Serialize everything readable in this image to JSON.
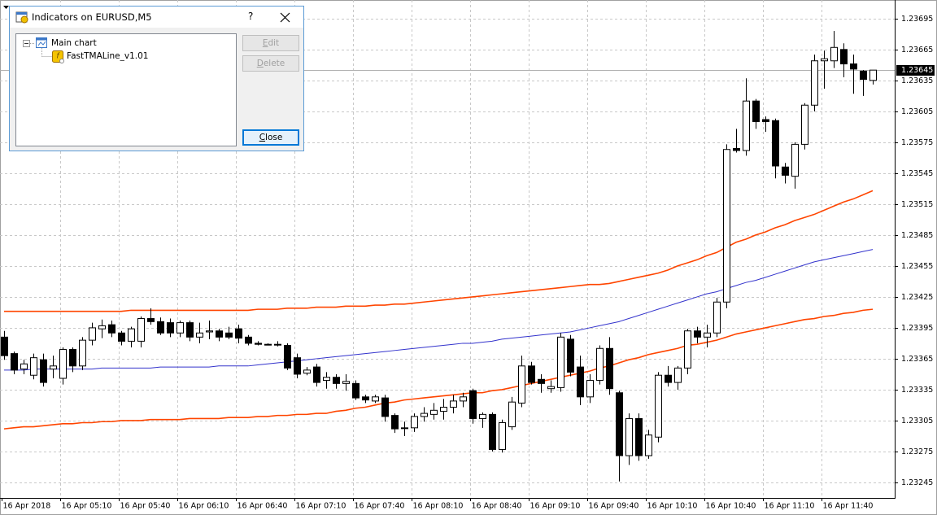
{
  "dialog": {
    "title": "Indicators on EURUSD,M5",
    "help": "?",
    "tree": {
      "root": "Main chart",
      "items": [
        "FastTMALine_v1.01"
      ]
    },
    "buttons": {
      "edit": "Edit",
      "delete": "Delete",
      "close": "Close"
    }
  },
  "chart_data": {
    "type": "candlestick",
    "categories": [
      "16 Apr 2018",
      null,
      null,
      null,
      null,
      null,
      "16 Apr 05:10",
      null,
      null,
      null,
      null,
      null,
      "16 Apr 05:40",
      null,
      null,
      null,
      null,
      null,
      "16 Apr 06:10",
      null,
      null,
      null,
      null,
      null,
      "16 Apr 06:40",
      null,
      null,
      null,
      null,
      null,
      "16 Apr 07:10",
      null,
      null,
      null,
      null,
      null,
      "16 Apr 07:40",
      null,
      null,
      null,
      null,
      null,
      "16 Apr 08:10",
      null,
      null,
      null,
      null,
      null,
      "16 Apr 08:40",
      null,
      null,
      null,
      null,
      null,
      "16 Apr 09:10",
      null,
      null,
      null,
      null,
      null,
      "16 Apr 09:40",
      null,
      null,
      null,
      null,
      null,
      "16 Apr 10:10",
      null,
      null,
      null,
      null,
      null,
      "16 Apr 10:40",
      null,
      null,
      null,
      null,
      null,
      "16 Apr 11:10",
      null,
      null,
      null,
      null,
      null,
      "16 Apr 11:40",
      null,
      null,
      null,
      null,
      null
    ],
    "open": [
      1.23386,
      1.2337,
      1.23355,
      1.23349,
      1.23364,
      1.23355,
      1.23346,
      1.23374,
      1.23358,
      1.23383,
      1.23394,
      1.23398,
      1.2339,
      1.23382,
      1.23382,
      1.23404,
      1.23401,
      1.234,
      1.2339,
      1.234,
      1.23386,
      1.23391,
      1.23392,
      1.2339,
      1.23394,
      1.23386,
      1.2338,
      1.23379,
      1.23379,
      1.23378,
      1.23366,
      1.23351,
      1.23357,
      1.23344,
      1.23347,
      1.23341,
      1.23341,
      1.23328,
      1.23324,
      1.23327,
      1.2331,
      1.23298,
      1.23298,
      1.23309,
      1.23311,
      1.23314,
      1.23318,
      1.23324,
      1.23334,
      1.23307,
      1.23311,
      1.23277,
      1.23299,
      1.23322,
      1.23358,
      1.23345,
      1.23336,
      1.23337,
      1.23384,
      1.23357,
      1.23328,
      1.23344,
      1.23375,
      1.23332,
      1.23271,
      1.23307,
      1.23271,
      1.23289,
      1.23349,
      1.23342,
      1.23356,
      1.23392,
      1.23386,
      1.2339,
      1.2342,
      1.23569,
      1.23567,
      1.23615,
      1.23597,
      1.23596,
      1.23551,
      1.23542,
      1.23573,
      1.23611,
      1.23654,
      1.23654,
      1.23665,
      1.23651,
      1.23644,
      1.23635
    ],
    "high": [
      1.23392,
      1.23372,
      1.23364,
      1.2337,
      1.2337,
      1.23368,
      1.23376,
      1.23376,
      1.23386,
      1.234,
      1.23403,
      1.23402,
      1.23392,
      1.23396,
      1.23406,
      1.23414,
      1.23405,
      1.23404,
      1.23402,
      1.23402,
      1.234,
      1.23402,
      1.23394,
      1.23396,
      1.23398,
      1.23388,
      1.23382,
      1.2338,
      1.23382,
      1.2338,
      1.2337,
      1.23357,
      1.2336,
      1.23352,
      1.2335,
      1.2335,
      1.23344,
      1.2333,
      1.2333,
      1.2333,
      1.23312,
      1.23304,
      1.23312,
      1.23318,
      1.23322,
      1.23326,
      1.2333,
      1.23332,
      1.23336,
      1.23313,
      1.23313,
      1.23306,
      1.23328,
      1.23368,
      1.23362,
      1.2335,
      1.23344,
      1.2339,
      1.23388,
      1.23368,
      1.2335,
      1.23378,
      1.23386,
      1.23334,
      1.23312,
      1.23312,
      1.23296,
      1.23352,
      1.23358,
      1.23358,
      1.23394,
      1.23396,
      1.23398,
      1.23424,
      1.23573,
      1.23588,
      1.23637,
      1.23617,
      1.236,
      1.23598,
      1.23555,
      1.23575,
      1.23613,
      1.2366,
      1.23664,
      1.23683,
      1.23671,
      1.2366,
      1.23645,
      1.23645
    ],
    "low": [
      1.23364,
      1.2335,
      1.2335,
      1.23345,
      1.23338,
      1.23346,
      1.2334,
      1.23352,
      1.23354,
      1.23378,
      1.23385,
      1.23386,
      1.23378,
      1.23376,
      1.23376,
      1.23398,
      1.23388,
      1.23386,
      1.23386,
      1.23382,
      1.2338,
      1.23384,
      1.23382,
      1.23384,
      1.2338,
      1.23378,
      1.23378,
      1.23378,
      1.23377,
      1.23354,
      1.23346,
      1.23349,
      1.23338,
      1.23336,
      1.23336,
      1.23334,
      1.23325,
      1.23322,
      1.23322,
      1.23304,
      1.23293,
      1.2329,
      1.23294,
      1.23304,
      1.23306,
      1.23306,
      1.23312,
      1.23318,
      1.23302,
      1.23298,
      1.23275,
      1.23274,
      1.23296,
      1.23318,
      1.2334,
      1.23332,
      1.23332,
      1.23333,
      1.23348,
      1.2332,
      1.23322,
      1.2334,
      1.2333,
      1.23246,
      1.23262,
      1.23266,
      1.23268,
      1.23284,
      1.23338,
      1.23335,
      1.2335,
      1.2338,
      1.23376,
      1.23386,
      1.23414,
      1.23565,
      1.23562,
      1.23588,
      1.23585,
      1.2354,
      1.23535,
      1.2353,
      1.23568,
      1.23605,
      1.23627,
      1.23647,
      1.23638,
      1.23622,
      1.2362,
      1.23631
    ],
    "close": [
      1.23368,
      1.23354,
      1.2336,
      1.23366,
      1.23342,
      1.23358,
      1.23374,
      1.23358,
      1.23383,
      1.23395,
      1.23397,
      1.2339,
      1.23382,
      1.23394,
      1.23404,
      1.23401,
      1.2339,
      1.2339,
      1.234,
      1.23386,
      1.2339,
      1.23392,
      1.23386,
      1.23386,
      1.23385,
      1.2338,
      1.23379,
      1.23379,
      1.23379,
      1.23356,
      1.2335,
      1.23354,
      1.23342,
      1.23347,
      1.23341,
      1.23343,
      1.23327,
      1.23325,
      1.23328,
      1.23309,
      1.23297,
      1.23298,
      1.23309,
      1.23312,
      1.23315,
      1.23318,
      1.23324,
      1.23328,
      1.23307,
      1.23311,
      1.23277,
      1.23303,
      1.23323,
      1.23358,
      1.23342,
      1.23341,
      1.23338,
      1.23386,
      1.23352,
      1.23328,
      1.23344,
      1.23375,
      1.23336,
      1.23271,
      1.23307,
      1.23271,
      1.23291,
      1.23349,
      1.23342,
      1.23356,
      1.23392,
      1.23386,
      1.2339,
      1.2342,
      1.23568,
      1.23567,
      1.23615,
      1.23595,
      1.23595,
      1.23552,
      1.23543,
      1.23573,
      1.23611,
      1.23654,
      1.23656,
      1.23667,
      1.23651,
      1.23646,
      1.23636,
      1.23645
    ],
    "up_color": "#ffffff",
    "down_color": "#000000",
    "series": [
      {
        "color": "#ff4500",
        "values": [
          1.23411,
          1.23411,
          1.23411,
          1.23411,
          1.23411,
          1.23411,
          1.23411,
          1.23411,
          1.23411,
          1.23411,
          1.23411,
          1.23411,
          1.23411,
          1.23412,
          1.23412,
          1.23412,
          1.23412,
          1.23412,
          1.23412,
          1.23412,
          1.23412,
          1.23412,
          1.23412,
          1.23412,
          1.23412,
          1.23412,
          1.23413,
          1.23413,
          1.23413,
          1.23414,
          1.23414,
          1.23414,
          1.23415,
          1.23415,
          1.23415,
          1.23416,
          1.23416,
          1.23416,
          1.23417,
          1.23417,
          1.23418,
          1.23418,
          1.23419,
          1.2342,
          1.23421,
          1.23422,
          1.23423,
          1.23424,
          1.23425,
          1.23426,
          1.23427,
          1.23428,
          1.23429,
          1.2343,
          1.23431,
          1.23432,
          1.23433,
          1.23434,
          1.23435,
          1.23436,
          1.23437,
          1.23437,
          1.23438,
          1.2344,
          1.23442,
          1.23444,
          1.23446,
          1.23448,
          1.23451,
          1.23455,
          1.23458,
          1.23461,
          1.23465,
          1.23468,
          1.23473,
          1.23478,
          1.23481,
          1.23485,
          1.23488,
          1.23492,
          1.23495,
          1.23499,
          1.23502,
          1.23505,
          1.23509,
          1.23513,
          1.23517,
          1.2352,
          1.23524,
          1.23528
        ]
      },
      {
        "color": "#3333cc",
        "values": [
          1.23354,
          1.23354,
          1.23354,
          1.23355,
          1.23355,
          1.23355,
          1.23355,
          1.23355,
          1.23355,
          1.23355,
          1.23356,
          1.23356,
          1.23356,
          1.23356,
          1.23356,
          1.23356,
          1.23357,
          1.23357,
          1.23357,
          1.23357,
          1.23357,
          1.23357,
          1.23358,
          1.23358,
          1.23358,
          1.23358,
          1.23359,
          1.2336,
          1.23361,
          1.23362,
          1.23363,
          1.23364,
          1.23365,
          1.23366,
          1.23367,
          1.23368,
          1.23369,
          1.2337,
          1.23371,
          1.23372,
          1.23373,
          1.23374,
          1.23375,
          1.23376,
          1.23377,
          1.23378,
          1.23379,
          1.2338,
          1.2338,
          1.23381,
          1.23382,
          1.23384,
          1.23385,
          1.23386,
          1.23387,
          1.23388,
          1.23389,
          1.2339,
          1.23391,
          1.23393,
          1.23395,
          1.23397,
          1.23399,
          1.23401,
          1.23404,
          1.23407,
          1.2341,
          1.23413,
          1.23416,
          1.23419,
          1.23422,
          1.23425,
          1.23428,
          1.2343,
          1.23433,
          1.23436,
          1.23439,
          1.23441,
          1.23444,
          1.23447,
          1.2345,
          1.23453,
          1.23456,
          1.23459,
          1.23461,
          1.23463,
          1.23465,
          1.23467,
          1.23469,
          1.23471
        ]
      },
      {
        "color": "#ff4500",
        "values": [
          1.23297,
          1.23298,
          1.23299,
          1.23299,
          1.233,
          1.23301,
          1.23302,
          1.23302,
          1.23303,
          1.23303,
          1.23304,
          1.23304,
          1.23305,
          1.23305,
          1.23305,
          1.23306,
          1.23306,
          1.23306,
          1.23306,
          1.23307,
          1.23307,
          1.23307,
          1.23307,
          1.23308,
          1.23308,
          1.23308,
          1.23309,
          1.23309,
          1.2331,
          1.2331,
          1.23311,
          1.23311,
          1.23312,
          1.23312,
          1.23314,
          1.23315,
          1.23317,
          1.23318,
          1.2332,
          1.23322,
          1.23323,
          1.23325,
          1.23326,
          1.23327,
          1.23328,
          1.23329,
          1.2333,
          1.23331,
          1.23332,
          1.23332,
          1.23334,
          1.23335,
          1.23337,
          1.23339,
          1.23341,
          1.23343,
          1.23345,
          1.23347,
          1.23349,
          1.23351,
          1.23353,
          1.23356,
          1.23358,
          1.23361,
          1.23364,
          1.23366,
          1.23369,
          1.23371,
          1.23373,
          1.23375,
          1.23378,
          1.23379,
          1.23381,
          1.23383,
          1.23386,
          1.23389,
          1.23391,
          1.23393,
          1.23395,
          1.23397,
          1.23399,
          1.23401,
          1.23403,
          1.23404,
          1.23406,
          1.23407,
          1.23409,
          1.2341,
          1.23412,
          1.23413
        ]
      }
    ],
    "current_price": 1.23645,
    "ylim": [
      1.2323,
      1.23713
    ],
    "yticks": [
      1.23695,
      1.23665,
      1.23635,
      1.23605,
      1.23575,
      1.23545,
      1.23515,
      1.23485,
      1.23455,
      1.23425,
      1.23395,
      1.23365,
      1.23335,
      1.23305,
      1.23275,
      1.23245
    ],
    "grid": true
  }
}
